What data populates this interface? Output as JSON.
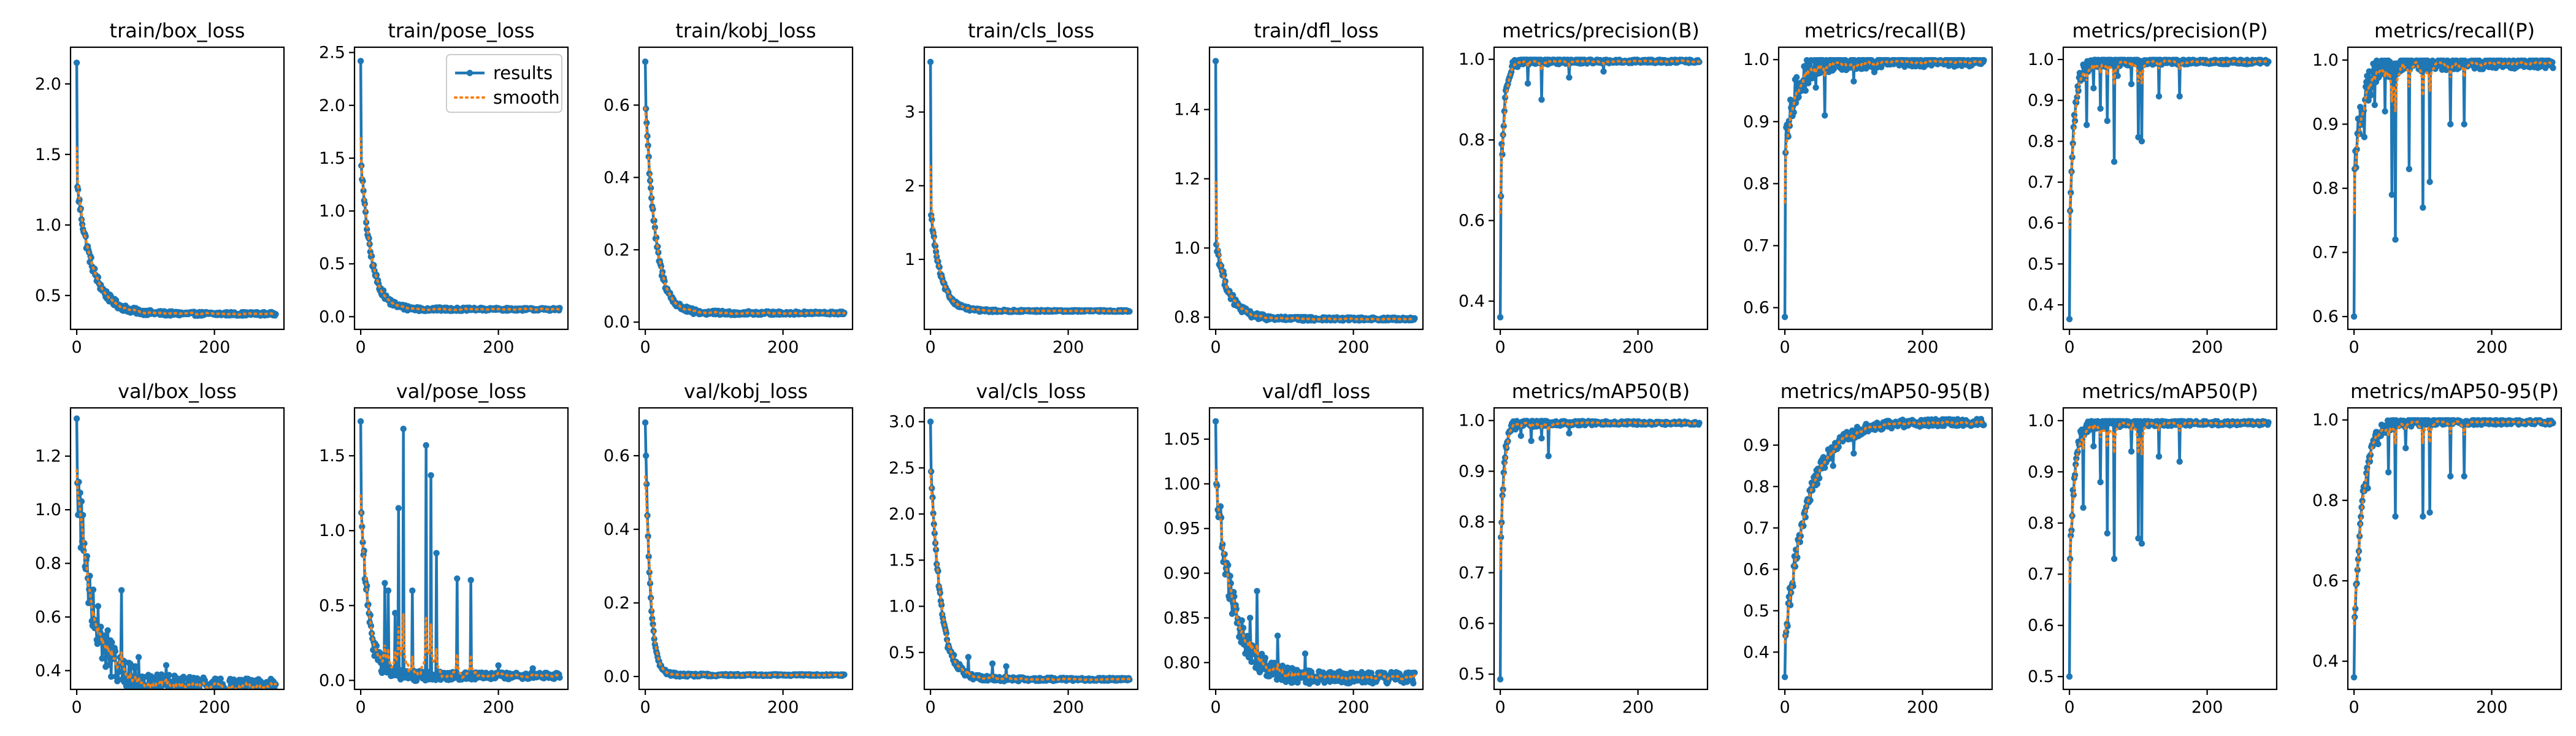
{
  "figure": {
    "colors": {
      "results": "#1f77b4",
      "smooth": "#ff7f0e"
    },
    "legend": {
      "panel": "train/pose_loss",
      "entries": [
        "results",
        "smooth"
      ],
      "placement": "upper-right"
    }
  },
  "chart_data": [
    {
      "type": "line",
      "title": "train/box_loss",
      "xlabel": "",
      "ylabel": "",
      "xlim": [
        -9,
        301
      ],
      "ylim": [
        0.26,
        2.26
      ],
      "xticks": [
        0,
        200
      ],
      "yticks": [
        0.5,
        1.0,
        1.5,
        2.0
      ],
      "ytick_labels": [
        "0.5",
        "1.0",
        "1.5",
        "2.0"
      ],
      "pattern": "decay",
      "start": 2.15,
      "second": 1.27,
      "end": 0.37,
      "k": 0.045,
      "noise": 0.012,
      "spikes": [],
      "series": [
        {
          "name": "results"
        },
        {
          "name": "smooth"
        }
      ],
      "grid": false
    },
    {
      "type": "line",
      "title": "train/pose_loss",
      "xlabel": "",
      "ylabel": "",
      "xlim": [
        -9,
        301
      ],
      "ylim": [
        -0.12,
        2.55
      ],
      "xticks": [
        0,
        200
      ],
      "yticks": [
        0.0,
        0.5,
        1.0,
        1.5,
        2.0,
        2.5
      ],
      "ytick_labels": [
        "0.0",
        "0.5",
        "1.0",
        "1.5",
        "2.0",
        "2.5"
      ],
      "pattern": "decay",
      "start": 2.42,
      "second": 1.43,
      "end": 0.07,
      "k": 0.07,
      "noise": 0.012,
      "spikes": [],
      "series": [
        {
          "name": "results"
        },
        {
          "name": "smooth"
        }
      ],
      "grid": false
    },
    {
      "type": "line",
      "title": "train/kobj_loss",
      "xlabel": "",
      "ylabel": "",
      "xlim": [
        -9,
        301
      ],
      "ylim": [
        -0.02,
        0.76
      ],
      "xticks": [
        0,
        200
      ],
      "yticks": [
        0.0,
        0.2,
        0.4,
        0.6
      ],
      "ytick_labels": [
        "0.0",
        "0.2",
        "0.4",
        "0.6"
      ],
      "pattern": "decay",
      "start": 0.72,
      "second": 0.59,
      "end": 0.025,
      "k": 0.07,
      "noise": 0.004,
      "spikes": [],
      "series": [
        {
          "name": "results"
        },
        {
          "name": "smooth"
        }
      ],
      "grid": false
    },
    {
      "type": "line",
      "title": "train/cls_loss",
      "xlabel": "",
      "ylabel": "",
      "xlim": [
        -9,
        301
      ],
      "ylim": [
        0.05,
        3.88
      ],
      "xticks": [
        0,
        200
      ],
      "yticks": [
        1,
        2,
        3
      ],
      "ytick_labels": [
        "1",
        "2",
        "3"
      ],
      "pattern": "decay",
      "start": 3.68,
      "second": 1.6,
      "end": 0.3,
      "k": 0.07,
      "noise": 0.01,
      "spikes": [],
      "series": [
        {
          "name": "results"
        },
        {
          "name": "smooth"
        }
      ],
      "grid": false
    },
    {
      "type": "line",
      "title": "train/dfl_loss",
      "xlabel": "",
      "ylabel": "",
      "xlim": [
        -9,
        301
      ],
      "ylim": [
        0.765,
        1.58
      ],
      "xticks": [
        0,
        200
      ],
      "yticks": [
        0.8,
        1.0,
        1.2,
        1.4
      ],
      "ytick_labels": [
        "0.8",
        "1.0",
        "1.2",
        "1.4"
      ],
      "pattern": "decay",
      "start": 1.54,
      "second": 1.01,
      "end": 0.795,
      "k": 0.055,
      "noise": 0.004,
      "spikes": [],
      "series": [
        {
          "name": "results"
        },
        {
          "name": "smooth"
        }
      ],
      "grid": false
    },
    {
      "type": "line",
      "title": "metrics/precision(B)",
      "xlabel": "",
      "ylabel": "",
      "xlim": [
        -9,
        301
      ],
      "ylim": [
        0.33,
        1.03
      ],
      "xticks": [
        0,
        200
      ],
      "yticks": [
        0.4,
        0.6,
        0.8,
        1.0
      ],
      "ytick_labels": [
        "0.4",
        "0.6",
        "0.8",
        "1.0"
      ],
      "pattern": "rise",
      "start": 0.36,
      "second": 0.66,
      "end": 0.995,
      "k": 0.2,
      "noise": 0.004,
      "spikes": [
        [
          2,
          0.79
        ],
        [
          40,
          0.94
        ],
        [
          60,
          0.9
        ],
        [
          100,
          0.955
        ],
        [
          150,
          0.97
        ]
      ],
      "series": [
        {
          "name": "results"
        },
        {
          "name": "smooth"
        }
      ],
      "grid": false
    },
    {
      "type": "line",
      "title": "metrics/recall(B)",
      "xlabel": "",
      "ylabel": "",
      "xlim": [
        -9,
        301
      ],
      "ylim": [
        0.565,
        1.02
      ],
      "xticks": [
        0,
        200
      ],
      "yticks": [
        0.6,
        0.7,
        0.8,
        0.9,
        1.0
      ],
      "ytick_labels": [
        "0.6",
        "0.7",
        "0.8",
        "0.9",
        "1.0"
      ],
      "pattern": "rise",
      "start": 0.585,
      "second": 0.85,
      "end": 0.997,
      "k": 0.07,
      "noise": 0.008,
      "spikes": [
        [
          30,
          0.95
        ],
        [
          45,
          0.955
        ],
        [
          58,
          0.91
        ],
        [
          100,
          0.965
        ],
        [
          130,
          0.98
        ]
      ],
      "series": [
        {
          "name": "results"
        },
        {
          "name": "smooth"
        }
      ],
      "grid": false
    },
    {
      "type": "line",
      "title": "metrics/precision(P)",
      "xlabel": "",
      "ylabel": "",
      "xlim": [
        -9,
        301
      ],
      "ylim": [
        0.34,
        1.03
      ],
      "xticks": [
        0,
        200
      ],
      "yticks": [
        0.4,
        0.5,
        0.6,
        0.7,
        0.8,
        0.9,
        1.0
      ],
      "ytick_labels": [
        "0.4",
        "0.5",
        "0.6",
        "0.7",
        "0.8",
        "0.9",
        "1.0"
      ],
      "pattern": "rise",
      "start": 0.365,
      "second": 0.63,
      "end": 0.995,
      "k": 0.15,
      "noise": 0.006,
      "spikes": [
        [
          25,
          0.84
        ],
        [
          35,
          0.93
        ],
        [
          45,
          0.88
        ],
        [
          55,
          0.85
        ],
        [
          65,
          0.75
        ],
        [
          70,
          0.96
        ],
        [
          90,
          0.94
        ],
        [
          100,
          0.81
        ],
        [
          105,
          0.8
        ],
        [
          130,
          0.91
        ],
        [
          160,
          0.91
        ]
      ],
      "series": [
        {
          "name": "results"
        },
        {
          "name": "smooth"
        }
      ],
      "grid": false
    },
    {
      "type": "line",
      "title": "metrics/recall(P)",
      "xlabel": "",
      "ylabel": "",
      "xlim": [
        -9,
        301
      ],
      "ylim": [
        0.58,
        1.02
      ],
      "xticks": [
        0,
        200
      ],
      "yticks": [
        0.6,
        0.7,
        0.8,
        0.9,
        1.0
      ],
      "ytick_labels": [
        "0.6",
        "0.7",
        "0.8",
        "0.9",
        "1.0"
      ],
      "pattern": "rise",
      "start": 0.6,
      "second": 0.83,
      "end": 0.995,
      "k": 0.08,
      "noise": 0.008,
      "spikes": [
        [
          15,
          0.88
        ],
        [
          30,
          0.93
        ],
        [
          45,
          0.92
        ],
        [
          55,
          0.79
        ],
        [
          60,
          0.72
        ],
        [
          80,
          0.83
        ],
        [
          100,
          0.77
        ],
        [
          110,
          0.81
        ],
        [
          140,
          0.9
        ],
        [
          160,
          0.9
        ]
      ],
      "series": [
        {
          "name": "results"
        },
        {
          "name": "smooth"
        }
      ],
      "grid": false
    },
    {
      "type": "line",
      "title": "val/box_loss",
      "xlabel": "",
      "ylabel": "",
      "xlim": [
        -9,
        301
      ],
      "ylim": [
        0.33,
        1.38
      ],
      "xticks": [
        0,
        200
      ],
      "yticks": [
        0.4,
        0.6,
        0.8,
        1.0,
        1.2
      ],
      "ytick_labels": [
        "0.4",
        "0.6",
        "0.8",
        "1.0",
        "1.2"
      ],
      "pattern": "decay",
      "start": 1.34,
      "second": 1.1,
      "end": 0.34,
      "k": 0.04,
      "noise": 0.03,
      "spikes": [
        [
          30,
          0.5
        ],
        [
          45,
          0.55
        ],
        [
          65,
          0.7
        ],
        [
          90,
          0.45
        ],
        [
          130,
          0.42
        ]
      ],
      "series": [
        {
          "name": "results"
        },
        {
          "name": "smooth"
        }
      ],
      "grid": false
    },
    {
      "type": "line",
      "title": "val/pose_loss",
      "xlabel": "",
      "ylabel": "",
      "xlim": [
        -9,
        301
      ],
      "ylim": [
        -0.06,
        1.82
      ],
      "xticks": [
        0,
        200
      ],
      "yticks": [
        0.0,
        0.5,
        1.0,
        1.5
      ],
      "ytick_labels": [
        "0.0",
        "0.5",
        "1.0",
        "1.5"
      ],
      "pattern": "decay",
      "start": 1.73,
      "second": 1.12,
      "end": 0.03,
      "k": 0.09,
      "noise": 0.02,
      "spikes": [
        [
          35,
          0.65
        ],
        [
          40,
          0.6
        ],
        [
          50,
          0.45
        ],
        [
          55,
          1.15
        ],
        [
          62,
          1.68
        ],
        [
          75,
          0.6
        ],
        [
          95,
          1.57
        ],
        [
          102,
          1.37
        ],
        [
          110,
          0.85
        ],
        [
          140,
          0.68
        ],
        [
          160,
          0.67
        ],
        [
          200,
          0.1
        ],
        [
          250,
          0.08
        ]
      ],
      "series": [
        {
          "name": "results"
        },
        {
          "name": "smooth"
        }
      ],
      "grid": false
    },
    {
      "type": "line",
      "title": "val/kobj_loss",
      "xlabel": "",
      "ylabel": "",
      "xlim": [
        -9,
        301
      ],
      "ylim": [
        -0.035,
        0.73
      ],
      "xticks": [
        0,
        200
      ],
      "yticks": [
        0.0,
        0.2,
        0.4,
        0.6
      ],
      "ytick_labels": [
        "0.0",
        "0.2",
        "0.4",
        "0.6"
      ],
      "pattern": "decay",
      "start": 0.69,
      "second": 0.6,
      "end": 0.004,
      "k": 0.15,
      "noise": 0.002,
      "spikes": [],
      "series": [
        {
          "name": "results"
        },
        {
          "name": "smooth"
        }
      ],
      "grid": false
    },
    {
      "type": "line",
      "title": "val/cls_loss",
      "xlabel": "",
      "ylabel": "",
      "xlim": [
        -9,
        301
      ],
      "ylim": [
        0.1,
        3.15
      ],
      "xticks": [
        0,
        200
      ],
      "yticks": [
        0.5,
        1.0,
        1.5,
        2.0,
        2.5,
        3.0
      ],
      "ytick_labels": [
        "0.5",
        "1.0",
        "1.5",
        "2.0",
        "2.5",
        "3.0"
      ],
      "pattern": "decay",
      "start": 3.0,
      "second": 2.46,
      "end": 0.21,
      "k": 0.07,
      "noise": 0.015,
      "spikes": [
        [
          25,
          0.55
        ],
        [
          55,
          0.45
        ],
        [
          90,
          0.38
        ],
        [
          110,
          0.35
        ]
      ],
      "series": [
        {
          "name": "results"
        },
        {
          "name": "smooth"
        }
      ],
      "grid": false
    },
    {
      "type": "line",
      "title": "val/dfl_loss",
      "xlabel": "",
      "ylabel": "",
      "xlim": [
        -9,
        301
      ],
      "ylim": [
        0.77,
        1.085
      ],
      "xticks": [
        0,
        200
      ],
      "yticks": [
        0.8,
        0.85,
        0.9,
        0.95,
        1.0,
        1.05
      ],
      "ytick_labels": [
        "0.80",
        "0.85",
        "0.90",
        "0.95",
        "1.00",
        "1.05"
      ],
      "pattern": "decay",
      "start": 1.07,
      "second": 1.0,
      "end": 0.783,
      "k": 0.04,
      "noise": 0.006,
      "spikes": [
        [
          30,
          0.86
        ],
        [
          50,
          0.85
        ],
        [
          60,
          0.88
        ],
        [
          90,
          0.83
        ],
        [
          130,
          0.81
        ]
      ],
      "series": [
        {
          "name": "results"
        },
        {
          "name": "smooth"
        }
      ],
      "grid": false
    },
    {
      "type": "line",
      "title": "metrics/mAP50(B)",
      "xlabel": "",
      "ylabel": "",
      "xlim": [
        -9,
        301
      ],
      "ylim": [
        0.47,
        1.025
      ],
      "xticks": [
        0,
        200
      ],
      "yticks": [
        0.5,
        0.6,
        0.7,
        0.8,
        0.9,
        1.0
      ],
      "ytick_labels": [
        "0.5",
        "0.6",
        "0.7",
        "0.8",
        "0.9",
        "1.0"
      ],
      "pattern": "rise",
      "start": 0.49,
      "second": 0.77,
      "end": 0.995,
      "k": 0.2,
      "noise": 0.003,
      "spikes": [
        [
          30,
          0.97
        ],
        [
          45,
          0.96
        ],
        [
          60,
          0.965
        ],
        [
          70,
          0.93
        ],
        [
          100,
          0.975
        ]
      ],
      "series": [
        {
          "name": "results"
        },
        {
          "name": "smooth"
        }
      ],
      "grid": false
    },
    {
      "type": "line",
      "title": "metrics/mAP50-95(B)",
      "xlabel": "",
      "ylabel": "",
      "xlim": [
        -9,
        301
      ],
      "ylim": [
        0.31,
        0.99
      ],
      "xticks": [
        0,
        200
      ],
      "yticks": [
        0.4,
        0.5,
        0.6,
        0.7,
        0.8,
        0.9
      ],
      "ytick_labels": [
        "0.4",
        "0.5",
        "0.6",
        "0.7",
        "0.8",
        "0.9"
      ],
      "pattern": "rise",
      "start": 0.34,
      "second": 0.44,
      "end": 0.955,
      "k": 0.03,
      "noise": 0.008,
      "spikes": [
        [
          50,
          0.82
        ],
        [
          70,
          0.85
        ],
        [
          100,
          0.88
        ]
      ],
      "series": [
        {
          "name": "results"
        },
        {
          "name": "smooth"
        }
      ],
      "grid": false
    },
    {
      "type": "line",
      "title": "metrics/mAP50(P)",
      "xlabel": "",
      "ylabel": "",
      "xlim": [
        -9,
        301
      ],
      "ylim": [
        0.475,
        1.025
      ],
      "xticks": [
        0,
        200
      ],
      "yticks": [
        0.5,
        0.6,
        0.7,
        0.8,
        0.9,
        1.0
      ],
      "ytick_labels": [
        "0.5",
        "0.6",
        "0.7",
        "0.8",
        "0.9",
        "1.0"
      ],
      "pattern": "rise",
      "start": 0.5,
      "second": 0.73,
      "end": 0.995,
      "k": 0.15,
      "noise": 0.004,
      "spikes": [
        [
          20,
          0.83
        ],
        [
          35,
          0.95
        ],
        [
          45,
          0.88
        ],
        [
          55,
          0.78
        ],
        [
          65,
          0.73
        ],
        [
          90,
          0.94
        ],
        [
          100,
          0.77
        ],
        [
          105,
          0.76
        ],
        [
          130,
          0.93
        ],
        [
          160,
          0.92
        ]
      ],
      "series": [
        {
          "name": "results"
        },
        {
          "name": "smooth"
        }
      ],
      "grid": false
    },
    {
      "type": "line",
      "title": "metrics/mAP50-95(P)",
      "xlabel": "",
      "ylabel": "",
      "xlim": [
        -9,
        301
      ],
      "ylim": [
        0.33,
        1.03
      ],
      "xticks": [
        0,
        200
      ],
      "yticks": [
        0.4,
        0.6,
        0.8,
        1.0
      ],
      "ytick_labels": [
        "0.4",
        "0.6",
        "0.8",
        "1.0"
      ],
      "pattern": "rise",
      "start": 0.36,
      "second": 0.51,
      "end": 0.995,
      "k": 0.08,
      "noise": 0.006,
      "spikes": [
        [
          20,
          0.83
        ],
        [
          35,
          0.94
        ],
        [
          50,
          0.87
        ],
        [
          60,
          0.76
        ],
        [
          75,
          0.93
        ],
        [
          100,
          0.76
        ],
        [
          110,
          0.77
        ],
        [
          140,
          0.86
        ],
        [
          160,
          0.86
        ]
      ],
      "series": [
        {
          "name": "results"
        },
        {
          "name": "smooth"
        }
      ],
      "grid": false
    }
  ]
}
